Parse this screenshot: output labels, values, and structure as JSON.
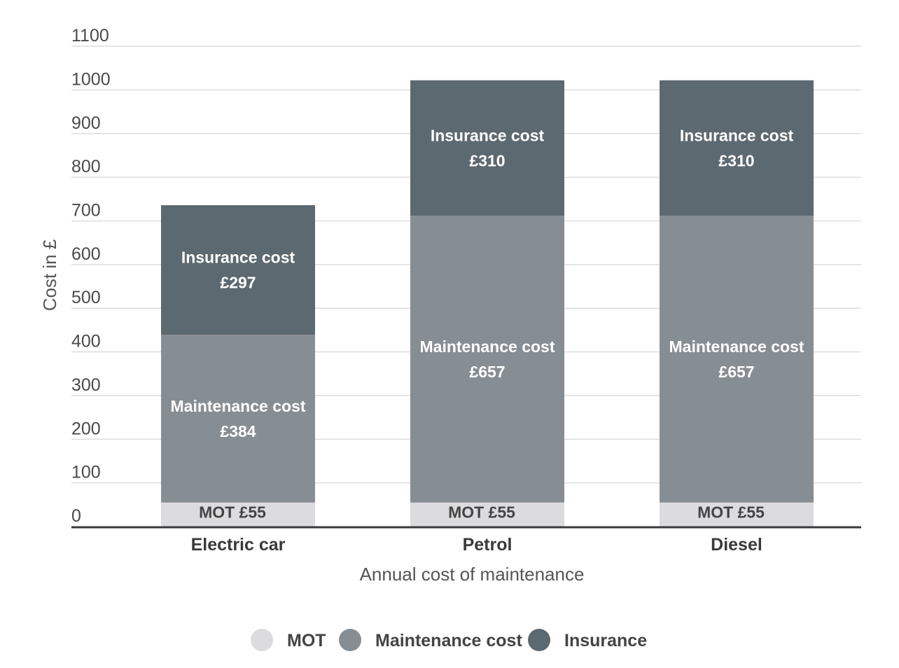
{
  "chart_data": {
    "type": "bar",
    "stacked": true,
    "title": "",
    "xlabel": "Annual cost of maintenance",
    "ylabel": "Cost in £",
    "ylim": [
      0,
      1100
    ],
    "yticks": [
      0,
      100,
      200,
      300,
      400,
      500,
      600,
      700,
      800,
      900,
      1000,
      1100
    ],
    "grid": true,
    "legend_position": "bottom-center",
    "categories": [
      "Electric car",
      "Petrol",
      "Diesel"
    ],
    "series": [
      {
        "name": "MOT",
        "color": "#dcdcde",
        "text_color": "#444444",
        "values": [
          55,
          55,
          55
        ],
        "labels": [
          "MOT £55",
          "MOT £55",
          "MOT £55"
        ]
      },
      {
        "name": "Maintenance cost",
        "color": "#878e93",
        "text_color": "#ffffff",
        "values": [
          384,
          657,
          657
        ],
        "labels": [
          [
            "Maintenance cost",
            "£384"
          ],
          [
            "Maintenance cost",
            "£657"
          ],
          [
            "Maintenance cost",
            "£657"
          ]
        ]
      },
      {
        "name": "Insurance",
        "color": "#5d6970",
        "text_color": "#ffffff",
        "values": [
          297,
          310,
          310
        ],
        "labels": [
          [
            "Insurance cost",
            "£297"
          ],
          [
            "Insurance cost",
            "£310"
          ],
          [
            "Insurance cost",
            "£310"
          ]
        ]
      }
    ]
  }
}
